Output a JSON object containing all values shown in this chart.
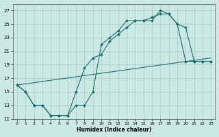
{
  "xlabel": "Humidex (Indice chaleur)",
  "background_color": "#cce8e4",
  "grid_color": "#aacfcb",
  "line_color": "#1a6b6b",
  "xlim": [
    -0.5,
    23.5
  ],
  "ylim": [
    11,
    28
  ],
  "xticks": [
    0,
    1,
    2,
    3,
    4,
    5,
    6,
    7,
    8,
    9,
    10,
    11,
    12,
    13,
    14,
    15,
    16,
    17,
    18,
    19,
    20,
    21,
    22,
    23
  ],
  "yticks": [
    11,
    13,
    15,
    17,
    19,
    21,
    23,
    25,
    27
  ],
  "curve1_x": [
    0,
    1,
    2,
    3,
    4,
    5,
    6,
    7,
    8,
    9,
    10,
    11,
    12,
    13,
    14,
    15,
    16,
    17,
    18,
    19,
    20,
    21,
    22,
    23
  ],
  "curve1_y": [
    16,
    15,
    13,
    13,
    11.5,
    11.5,
    11.5,
    15,
    18.5,
    20,
    20.5,
    22.5,
    23.5,
    24.5,
    25.5,
    25.5,
    25.5,
    27,
    26.5,
    25,
    24.5,
    19.5,
    19.5,
    19.5
  ],
  "curve2_x": [
    0,
    1,
    2,
    3,
    4,
    5,
    6,
    7,
    8,
    9,
    10,
    11,
    12,
    13,
    14,
    15,
    16,
    17,
    18,
    19,
    20,
    21,
    22,
    23
  ],
  "curve2_y": [
    16,
    15,
    13,
    13,
    11.5,
    11.5,
    11.5,
    13,
    13,
    15,
    22,
    23,
    24,
    25.5,
    25.5,
    25.5,
    26,
    26.5,
    26.5,
    25,
    19.5,
    19.5,
    19.5,
    19.5
  ],
  "curve3_x": [
    0,
    23
  ],
  "curve3_y": [
    16,
    20
  ]
}
